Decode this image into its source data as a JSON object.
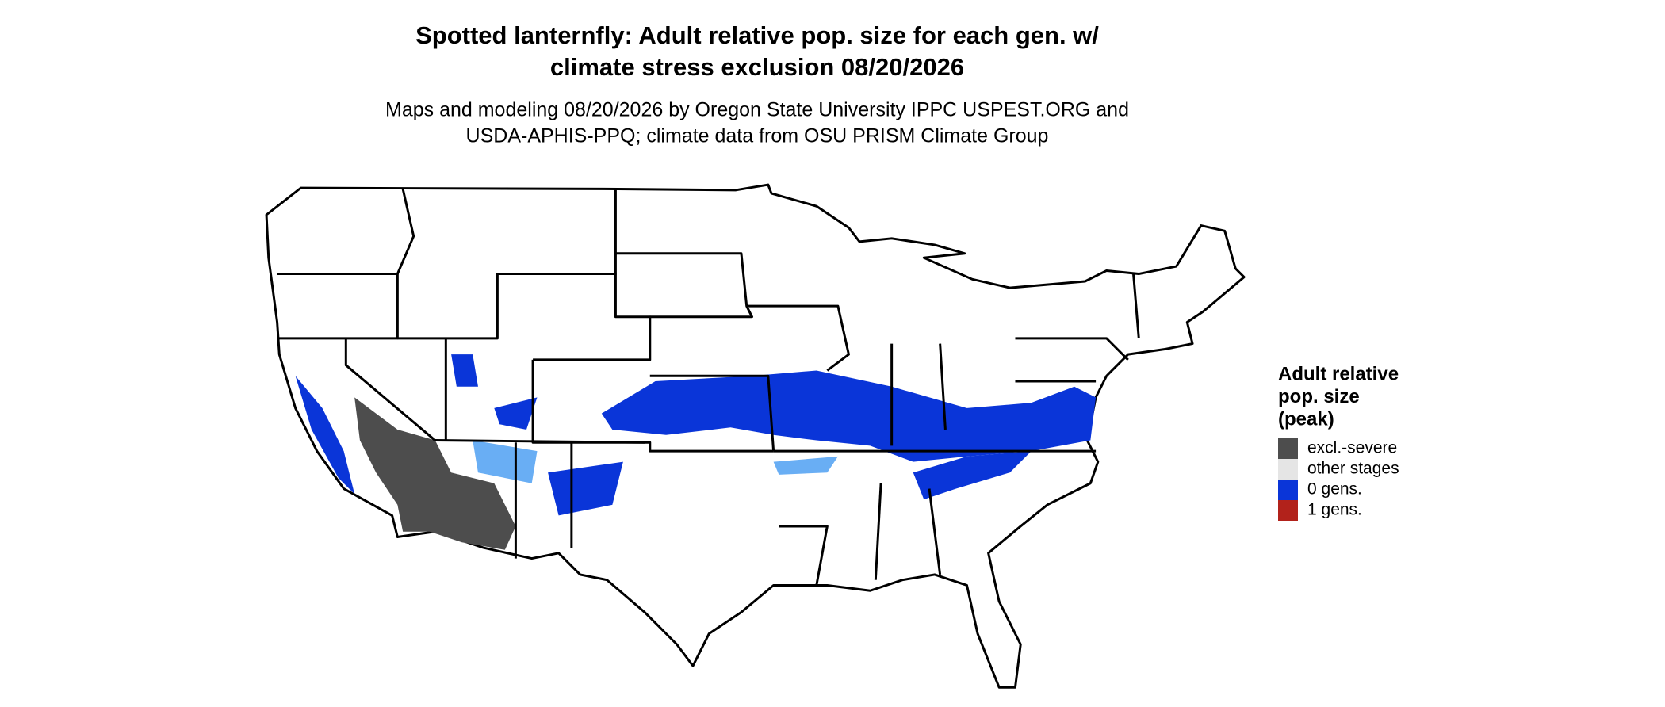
{
  "title": [
    "Spotted lanternfly: Adult relative pop. size for each gen. w/",
    "climate stress exclusion 08/20/2026"
  ],
  "subtitle": [
    "Maps and modeling 08/20/2026 by Oregon State University IPPC USPEST.ORG and",
    "USDA-APHIS-PPQ; climate data from OSU PRISM Climate Group"
  ],
  "legend": {
    "title": [
      "Adult relative",
      "pop. size",
      "(peak)"
    ],
    "items": [
      {
        "label": "excl.-severe",
        "color": "#4d4d4d"
      },
      {
        "label": "other stages",
        "color": "#e5e5e5"
      },
      {
        "label": "0 gens.",
        "color": "#0a35d8"
      },
      {
        "label": "1 gens.",
        "color": "#b2221b"
      }
    ]
  }
}
